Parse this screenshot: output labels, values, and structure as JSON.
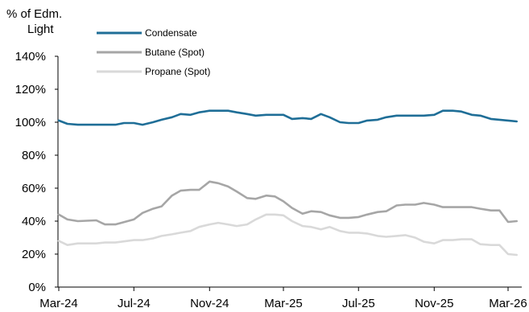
{
  "chart_data": {
    "type": "line",
    "ylabel": "% of Edm.\nLight",
    "xlabel": "",
    "title": "",
    "y_tick_labels": [
      "0%",
      "20%",
      "40%",
      "60%",
      "80%",
      "100%",
      "120%",
      "140%"
    ],
    "ylim": [
      0,
      140
    ],
    "x_tick_labels": [
      "Mar-24",
      "Jul-24",
      "Nov-24",
      "Mar-25",
      "Jul-25",
      "Nov-25",
      "Mar-26"
    ],
    "x_tick_dates": [
      "2024-03-01",
      "2024-07-01",
      "2024-11-01",
      "2025-03-01",
      "2025-07-01",
      "2025-11-01",
      "2026-03-01"
    ],
    "grid": false,
    "legend": "top-left",
    "series": [
      {
        "name": "Condensate",
        "color": "#1f6e97",
        "x": [
          "2024-03-01",
          "2024-03-15",
          "2024-04-01",
          "2024-05-01",
          "2024-06-01",
          "2024-06-15",
          "2024-07-01",
          "2024-07-15",
          "2024-08-01",
          "2024-08-15",
          "2024-09-01",
          "2024-09-15",
          "2024-10-01",
          "2024-10-15",
          "2024-11-01",
          "2024-12-01",
          "2024-12-15",
          "2025-01-01",
          "2025-01-15",
          "2025-02-01",
          "2025-03-01",
          "2025-03-15",
          "2025-04-01",
          "2025-04-15",
          "2025-05-01",
          "2025-05-15",
          "2025-06-01",
          "2025-06-15",
          "2025-07-01",
          "2025-07-15",
          "2025-08-01",
          "2025-08-15",
          "2025-09-01",
          "2025-10-01",
          "2025-10-15",
          "2025-11-01",
          "2025-11-15",
          "2025-12-01",
          "2025-12-15",
          "2026-01-01",
          "2026-01-15",
          "2026-02-01",
          "2026-03-01",
          "2026-03-15"
        ],
        "values": [
          101,
          99,
          98.5,
          98.5,
          98.5,
          99.5,
          99.5,
          98.5,
          100,
          101.5,
          103,
          105,
          104.5,
          106,
          107,
          107,
          106,
          105,
          104,
          104.5,
          104.5,
          102,
          102.5,
          102,
          105,
          103,
          100,
          99.5,
          99.5,
          101,
          101.5,
          103,
          104,
          104,
          104,
          104.5,
          107,
          107,
          106.5,
          104.5,
          104,
          102,
          101,
          100.5
        ]
      },
      {
        "name": "Butane (Spot)",
        "color": "#a6a6a6",
        "x": [
          "2024-03-01",
          "2024-03-15",
          "2024-04-01",
          "2024-05-01",
          "2024-05-15",
          "2024-06-01",
          "2024-07-01",
          "2024-07-15",
          "2024-08-01",
          "2024-08-15",
          "2024-09-01",
          "2024-09-15",
          "2024-10-01",
          "2024-10-15",
          "2024-11-01",
          "2024-11-15",
          "2024-12-01",
          "2024-12-15",
          "2025-01-01",
          "2025-01-15",
          "2025-02-01",
          "2025-02-15",
          "2025-03-01",
          "2025-03-15",
          "2025-04-01",
          "2025-04-15",
          "2025-05-01",
          "2025-05-15",
          "2025-06-01",
          "2025-06-15",
          "2025-07-01",
          "2025-07-15",
          "2025-08-01",
          "2025-08-15",
          "2025-09-01",
          "2025-09-15",
          "2025-10-01",
          "2025-10-15",
          "2025-11-01",
          "2025-11-15",
          "2025-12-01",
          "2025-12-15",
          "2026-01-01",
          "2026-01-15",
          "2026-02-01",
          "2026-02-15",
          "2026-03-01",
          "2026-03-15"
        ],
        "values": [
          44,
          41,
          40,
          40.5,
          38,
          38,
          41,
          45,
          47.5,
          49,
          55.5,
          58.5,
          59,
          59,
          64,
          63,
          61,
          58,
          54,
          53.5,
          55.5,
          55,
          52,
          48,
          44.5,
          46,
          45.5,
          43.5,
          42,
          42,
          42.5,
          44,
          45.5,
          46,
          49.5,
          50,
          50,
          51,
          50,
          48.5,
          48.5,
          48.5,
          48.5,
          47.5,
          46.5,
          46.5,
          39.5,
          40
        ]
      },
      {
        "name": "Propane (Spot)",
        "color": "#d9d9d9",
        "x": [
          "2024-03-01",
          "2024-03-15",
          "2024-04-01",
          "2024-05-01",
          "2024-05-15",
          "2024-06-01",
          "2024-07-01",
          "2024-07-15",
          "2024-08-01",
          "2024-08-15",
          "2024-09-01",
          "2024-09-15",
          "2024-10-01",
          "2024-10-15",
          "2024-11-01",
          "2024-11-15",
          "2024-12-01",
          "2024-12-15",
          "2025-01-01",
          "2025-01-15",
          "2025-02-01",
          "2025-02-15",
          "2025-03-01",
          "2025-03-15",
          "2025-04-01",
          "2025-04-15",
          "2025-05-01",
          "2025-05-15",
          "2025-06-01",
          "2025-06-15",
          "2025-07-01",
          "2025-07-15",
          "2025-08-01",
          "2025-08-15",
          "2025-09-01",
          "2025-09-15",
          "2025-10-01",
          "2025-10-15",
          "2025-11-01",
          "2025-11-15",
          "2025-12-01",
          "2025-12-15",
          "2026-01-01",
          "2026-01-15",
          "2026-02-01",
          "2026-02-15",
          "2026-03-01",
          "2026-03-15"
        ],
        "values": [
          28,
          25.5,
          26.5,
          26.5,
          27,
          27,
          28.5,
          28.5,
          29.5,
          31,
          32,
          33,
          34,
          36.5,
          38,
          39,
          38,
          37,
          38,
          41,
          44,
          44,
          43.5,
          40,
          37,
          36.5,
          35,
          36.5,
          34,
          33,
          33,
          32.5,
          31,
          30.5,
          31,
          31.5,
          30,
          27.5,
          26.5,
          28.5,
          28.5,
          29,
          29,
          26,
          25.5,
          25.5,
          20,
          19.5
        ]
      }
    ]
  }
}
